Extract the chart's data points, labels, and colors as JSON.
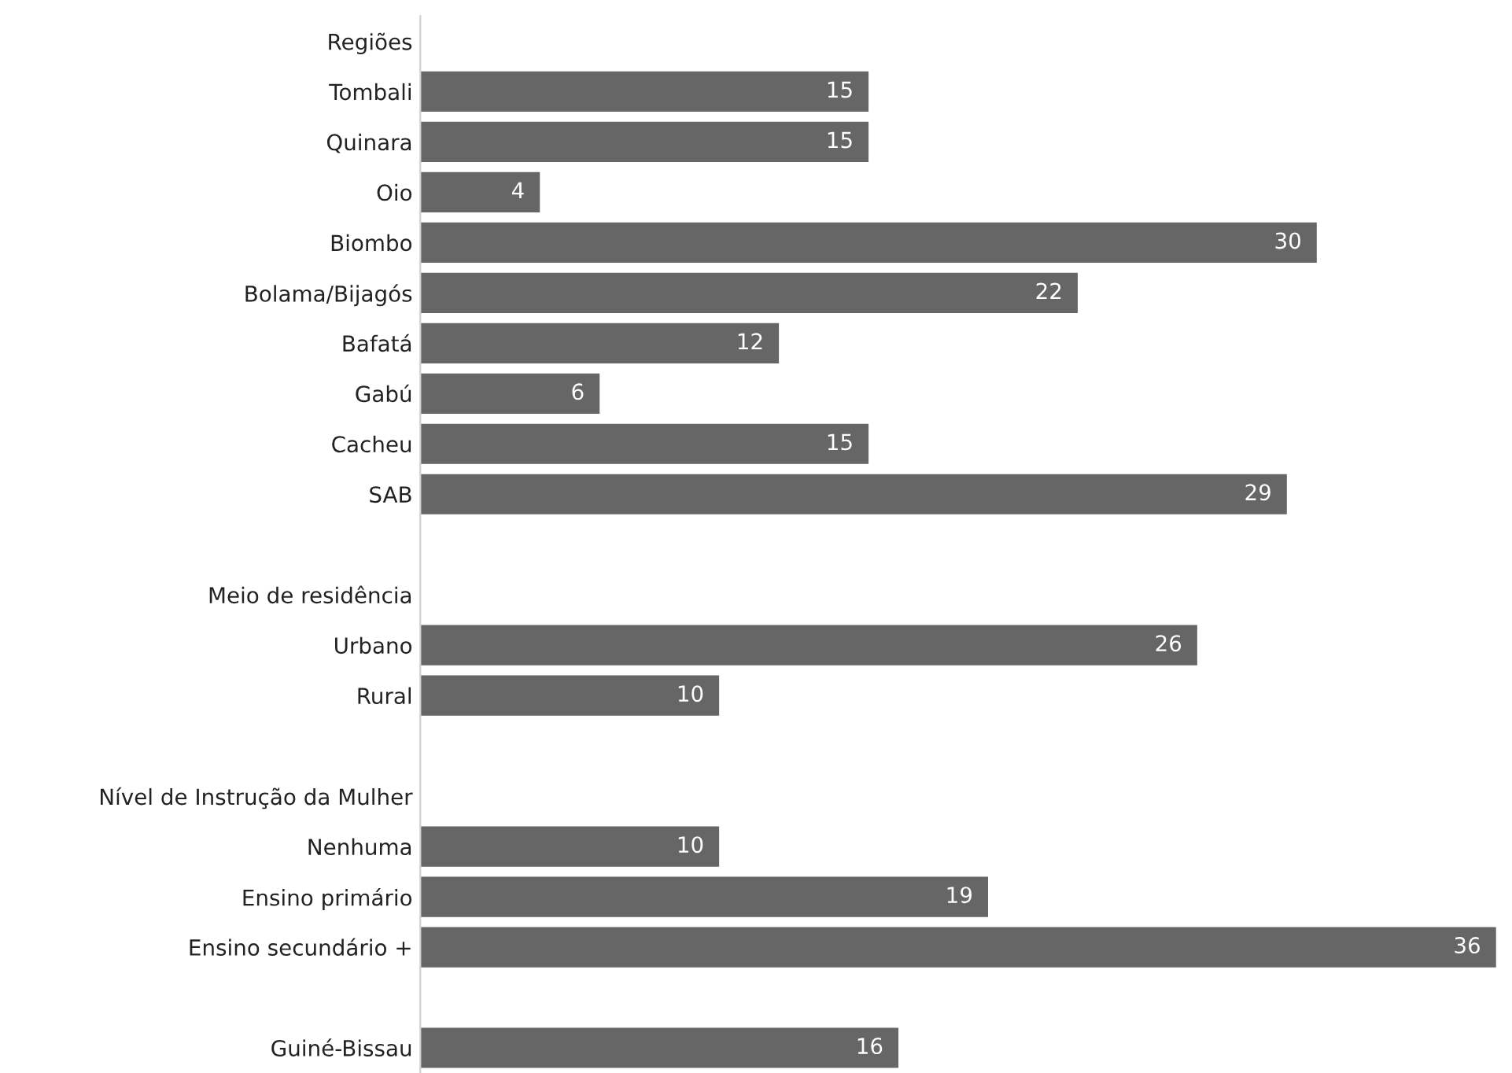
{
  "chart_data": {
    "type": "bar",
    "orientation": "horizontal",
    "data_labels": true,
    "color": "#666666",
    "grid": false,
    "legend": false,
    "tick_labels": "y",
    "categories": [
      "Regiões",
      "Tombali",
      "Quinara",
      "Oio",
      "Biombo",
      "Bolama/Bijagós",
      "Bafatá",
      "Gabú",
      "Cacheu",
      "SAB",
      null,
      "Meio de residência",
      "Urbano",
      "Rural",
      null,
      "Nível de Instrução da Mulher",
      "Nenhuma",
      "Ensino primário",
      "Ensino secundário +",
      null,
      "Guiné-Bissau"
    ],
    "values": [
      null,
      15,
      15,
      4,
      30,
      22,
      12,
      6,
      15,
      29,
      null,
      null,
      26,
      10,
      null,
      null,
      10,
      19,
      36,
      null,
      16
    ]
  }
}
